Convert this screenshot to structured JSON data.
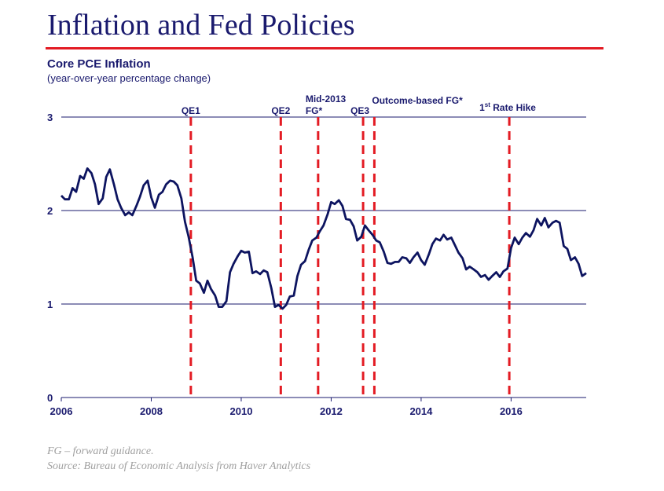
{
  "header": {
    "title": "Inflation and Fed Policies",
    "subtitle": "Core PCE Inflation",
    "subtitle_note": "(year-over-year percentage change)"
  },
  "footer": {
    "note": "FG – forward guidance.",
    "source": "Source: Bureau of Economic Analysis from Haver Analytics"
  },
  "colors": {
    "title": "#1a1a6e",
    "series": "#0d1460",
    "event_line": "#e31b23",
    "grid": "#1a1a6e",
    "rule": "#e31b23"
  },
  "chart_data": {
    "type": "line",
    "title": "Core PCE Inflation",
    "subtitle": "(year-over-year percentage change)",
    "xlabel": "",
    "ylabel": "",
    "xlim": [
      2006.0,
      2017.67
    ],
    "ylim": [
      0,
      3
    ],
    "x_ticks": [
      2006,
      2008,
      2010,
      2012,
      2014,
      2016
    ],
    "y_ticks": [
      0,
      1,
      2,
      3
    ],
    "grid": "horizontal",
    "series": [
      {
        "name": "Core PCE Inflation",
        "points": [
          [
            2006.0,
            2.16
          ],
          [
            2006.08,
            2.12
          ],
          [
            2006.17,
            2.12
          ],
          [
            2006.25,
            2.24
          ],
          [
            2006.33,
            2.2
          ],
          [
            2006.42,
            2.37
          ],
          [
            2006.5,
            2.34
          ],
          [
            2006.58,
            2.45
          ],
          [
            2006.67,
            2.4
          ],
          [
            2006.75,
            2.28
          ],
          [
            2006.83,
            2.07
          ],
          [
            2006.92,
            2.13
          ],
          [
            2007.0,
            2.36
          ],
          [
            2007.08,
            2.44
          ],
          [
            2007.17,
            2.28
          ],
          [
            2007.25,
            2.12
          ],
          [
            2007.33,
            2.03
          ],
          [
            2007.42,
            1.95
          ],
          [
            2007.5,
            1.98
          ],
          [
            2007.58,
            1.95
          ],
          [
            2007.67,
            2.05
          ],
          [
            2007.75,
            2.15
          ],
          [
            2007.83,
            2.27
          ],
          [
            2007.92,
            2.32
          ],
          [
            2008.0,
            2.14
          ],
          [
            2008.08,
            2.03
          ],
          [
            2008.17,
            2.17
          ],
          [
            2008.25,
            2.2
          ],
          [
            2008.33,
            2.28
          ],
          [
            2008.42,
            2.32
          ],
          [
            2008.5,
            2.31
          ],
          [
            2008.58,
            2.27
          ],
          [
            2008.67,
            2.13
          ],
          [
            2008.75,
            1.88
          ],
          [
            2008.83,
            1.72
          ],
          [
            2008.92,
            1.5
          ],
          [
            2009.0,
            1.25
          ],
          [
            2009.08,
            1.22
          ],
          [
            2009.17,
            1.12
          ],
          [
            2009.25,
            1.25
          ],
          [
            2009.33,
            1.16
          ],
          [
            2009.42,
            1.09
          ],
          [
            2009.5,
            0.97
          ],
          [
            2009.58,
            0.97
          ],
          [
            2009.67,
            1.03
          ],
          [
            2009.75,
            1.34
          ],
          [
            2009.83,
            1.43
          ],
          [
            2009.92,
            1.51
          ],
          [
            2010.0,
            1.57
          ],
          [
            2010.08,
            1.55
          ],
          [
            2010.17,
            1.56
          ],
          [
            2010.25,
            1.33
          ],
          [
            2010.33,
            1.35
          ],
          [
            2010.42,
            1.32
          ],
          [
            2010.5,
            1.36
          ],
          [
            2010.58,
            1.34
          ],
          [
            2010.67,
            1.17
          ],
          [
            2010.75,
            0.97
          ],
          [
            2010.83,
            0.99
          ],
          [
            2010.92,
            0.95
          ],
          [
            2011.0,
            0.99
          ],
          [
            2011.08,
            1.08
          ],
          [
            2011.17,
            1.09
          ],
          [
            2011.25,
            1.3
          ],
          [
            2011.33,
            1.42
          ],
          [
            2011.42,
            1.46
          ],
          [
            2011.5,
            1.58
          ],
          [
            2011.58,
            1.68
          ],
          [
            2011.67,
            1.71
          ],
          [
            2011.75,
            1.78
          ],
          [
            2011.83,
            1.84
          ],
          [
            2011.92,
            1.96
          ],
          [
            2012.0,
            2.09
          ],
          [
            2012.08,
            2.07
          ],
          [
            2012.17,
            2.11
          ],
          [
            2012.25,
            2.05
          ],
          [
            2012.33,
            1.91
          ],
          [
            2012.42,
            1.9
          ],
          [
            2012.5,
            1.83
          ],
          [
            2012.58,
            1.68
          ],
          [
            2012.67,
            1.72
          ],
          [
            2012.75,
            1.84
          ],
          [
            2012.83,
            1.79
          ],
          [
            2012.92,
            1.74
          ],
          [
            2013.0,
            1.68
          ],
          [
            2013.08,
            1.66
          ],
          [
            2013.17,
            1.56
          ],
          [
            2013.25,
            1.44
          ],
          [
            2013.33,
            1.43
          ],
          [
            2013.42,
            1.45
          ],
          [
            2013.5,
            1.45
          ],
          [
            2013.58,
            1.5
          ],
          [
            2013.67,
            1.49
          ],
          [
            2013.75,
            1.44
          ],
          [
            2013.83,
            1.5
          ],
          [
            2013.92,
            1.55
          ],
          [
            2014.0,
            1.47
          ],
          [
            2014.08,
            1.42
          ],
          [
            2014.17,
            1.53
          ],
          [
            2014.25,
            1.64
          ],
          [
            2014.33,
            1.7
          ],
          [
            2014.42,
            1.68
          ],
          [
            2014.5,
            1.74
          ],
          [
            2014.58,
            1.69
          ],
          [
            2014.67,
            1.71
          ],
          [
            2014.75,
            1.63
          ],
          [
            2014.83,
            1.55
          ],
          [
            2014.92,
            1.49
          ],
          [
            2015.0,
            1.37
          ],
          [
            2015.08,
            1.4
          ],
          [
            2015.17,
            1.37
          ],
          [
            2015.25,
            1.34
          ],
          [
            2015.33,
            1.29
          ],
          [
            2015.42,
            1.31
          ],
          [
            2015.5,
            1.26
          ],
          [
            2015.58,
            1.3
          ],
          [
            2015.67,
            1.34
          ],
          [
            2015.75,
            1.29
          ],
          [
            2015.83,
            1.35
          ],
          [
            2015.92,
            1.38
          ],
          [
            2016.0,
            1.6
          ],
          [
            2016.08,
            1.71
          ],
          [
            2016.17,
            1.64
          ],
          [
            2016.25,
            1.71
          ],
          [
            2016.33,
            1.76
          ],
          [
            2016.42,
            1.72
          ],
          [
            2016.5,
            1.79
          ],
          [
            2016.58,
            1.91
          ],
          [
            2016.67,
            1.84
          ],
          [
            2016.75,
            1.92
          ],
          [
            2016.83,
            1.82
          ],
          [
            2016.92,
            1.87
          ],
          [
            2017.0,
            1.89
          ],
          [
            2017.08,
            1.87
          ],
          [
            2017.17,
            1.62
          ],
          [
            2017.25,
            1.59
          ],
          [
            2017.33,
            1.47
          ],
          [
            2017.42,
            1.5
          ],
          [
            2017.5,
            1.43
          ],
          [
            2017.58,
            1.3
          ],
          [
            2017.67,
            1.33
          ]
        ]
      }
    ],
    "events": [
      {
        "x": 2008.88,
        "label": "QE1"
      },
      {
        "x": 2010.88,
        "label": "QE2"
      },
      {
        "x": 2011.71,
        "label": "FG*",
        "label_top": "Mid-2013"
      },
      {
        "x": 2012.71,
        "label": "QE3"
      },
      {
        "x": 2012.96,
        "label": "",
        "label_top": "Outcome-based FG*"
      },
      {
        "x": 2015.96,
        "label": "Rate Hike",
        "label_prefix": "1",
        "label_sup": "st"
      }
    ]
  }
}
